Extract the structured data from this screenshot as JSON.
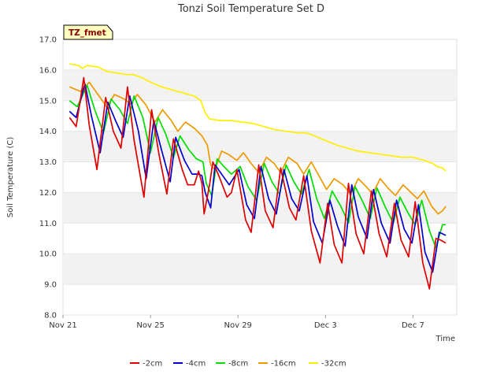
{
  "chart_data": {
    "type": "line",
    "title": "Tonzi Soil Temperature Set D",
    "badge": "TZ_fmet",
    "xlabel": "Time",
    "ylabel": "Soil Temperature (C)",
    "ylim": [
      8.0,
      17.0
    ],
    "yticks": [
      "8.0",
      "9.0",
      "10.0",
      "11.0",
      "12.0",
      "13.0",
      "14.0",
      "15.0",
      "16.0",
      "17.0"
    ],
    "xlim": [
      0,
      18
    ],
    "xticks": [
      {
        "x": 0,
        "label": "Nov 21"
      },
      {
        "x": 4,
        "label": "Nov 25"
      },
      {
        "x": 8,
        "label": "Nov 29"
      },
      {
        "x": 12,
        "label": "Dec 3"
      },
      {
        "x": 16,
        "label": "Dec 7"
      }
    ],
    "grid": "horizontal bands",
    "legend_position": "bottom",
    "x_unit": "days since Nov 21",
    "series": [
      {
        "name": "-2cm",
        "color": "#dd0000",
        "points": [
          [
            0.3,
            14.45
          ],
          [
            0.6,
            14.15
          ],
          [
            0.95,
            15.75
          ],
          [
            1.2,
            14.2
          ],
          [
            1.55,
            12.75
          ],
          [
            1.95,
            15.1
          ],
          [
            2.3,
            14.0
          ],
          [
            2.65,
            13.45
          ],
          [
            2.95,
            15.45
          ],
          [
            3.25,
            13.7
          ],
          [
            3.7,
            11.85
          ],
          [
            4.05,
            14.7
          ],
          [
            4.4,
            13.2
          ],
          [
            4.75,
            11.95
          ],
          [
            5.05,
            13.75
          ],
          [
            5.45,
            12.75
          ],
          [
            5.7,
            12.25
          ],
          [
            6.0,
            12.25
          ],
          [
            6.2,
            12.7
          ],
          [
            6.35,
            12.3
          ],
          [
            6.45,
            11.3
          ],
          [
            6.7,
            12.25
          ],
          [
            6.85,
            13.0
          ],
          [
            7.15,
            12.5
          ],
          [
            7.5,
            11.85
          ],
          [
            7.7,
            12.0
          ],
          [
            7.95,
            12.75
          ],
          [
            8.35,
            11.1
          ],
          [
            8.6,
            10.7
          ],
          [
            8.95,
            12.9
          ],
          [
            9.25,
            11.4
          ],
          [
            9.6,
            10.85
          ],
          [
            9.95,
            12.8
          ],
          [
            10.35,
            11.5
          ],
          [
            10.65,
            11.1
          ],
          [
            11.0,
            12.55
          ],
          [
            11.35,
            10.75
          ],
          [
            11.75,
            9.7
          ],
          [
            12.1,
            11.65
          ],
          [
            12.4,
            10.3
          ],
          [
            12.75,
            9.7
          ],
          [
            13.05,
            12.3
          ],
          [
            13.4,
            10.65
          ],
          [
            13.75,
            10.0
          ],
          [
            14.1,
            12.05
          ],
          [
            14.45,
            10.65
          ],
          [
            14.8,
            9.9
          ],
          [
            15.15,
            11.65
          ],
          [
            15.45,
            10.45
          ],
          [
            15.8,
            9.9
          ],
          [
            16.1,
            11.7
          ],
          [
            16.45,
            9.7
          ],
          [
            16.75,
            8.85
          ],
          [
            17.05,
            10.5
          ],
          [
            17.25,
            10.45
          ],
          [
            17.5,
            10.35
          ]
        ]
      },
      {
        "name": "-4cm",
        "color": "#0000cc",
        "points": [
          [
            0.3,
            14.65
          ],
          [
            0.6,
            14.45
          ],
          [
            1.0,
            15.55
          ],
          [
            1.3,
            14.5
          ],
          [
            1.7,
            13.3
          ],
          [
            2.05,
            14.95
          ],
          [
            2.4,
            14.35
          ],
          [
            2.75,
            13.8
          ],
          [
            3.05,
            15.15
          ],
          [
            3.45,
            14.0
          ],
          [
            3.8,
            12.45
          ],
          [
            4.15,
            14.35
          ],
          [
            4.5,
            13.4
          ],
          [
            4.9,
            12.35
          ],
          [
            5.15,
            13.8
          ],
          [
            5.55,
            13.05
          ],
          [
            5.9,
            12.6
          ],
          [
            6.2,
            12.6
          ],
          [
            6.35,
            12.55
          ],
          [
            6.5,
            12.0
          ],
          [
            6.75,
            11.5
          ],
          [
            6.95,
            12.9
          ],
          [
            7.25,
            12.6
          ],
          [
            7.6,
            12.25
          ],
          [
            8.05,
            12.75
          ],
          [
            8.4,
            11.6
          ],
          [
            8.75,
            11.15
          ],
          [
            9.05,
            12.85
          ],
          [
            9.4,
            11.8
          ],
          [
            9.75,
            11.3
          ],
          [
            10.1,
            12.75
          ],
          [
            10.45,
            11.8
          ],
          [
            10.8,
            11.4
          ],
          [
            11.15,
            12.55
          ],
          [
            11.45,
            11.05
          ],
          [
            11.85,
            10.35
          ],
          [
            12.2,
            11.75
          ],
          [
            12.55,
            10.9
          ],
          [
            12.9,
            10.25
          ],
          [
            13.2,
            12.25
          ],
          [
            13.5,
            11.2
          ],
          [
            13.9,
            10.5
          ],
          [
            14.2,
            12.1
          ],
          [
            14.55,
            11.0
          ],
          [
            14.95,
            10.35
          ],
          [
            15.25,
            11.75
          ],
          [
            15.6,
            10.8
          ],
          [
            15.95,
            10.35
          ],
          [
            16.25,
            11.6
          ],
          [
            16.55,
            10.05
          ],
          [
            16.9,
            9.4
          ],
          [
            17.2,
            10.7
          ],
          [
            17.5,
            10.6
          ]
        ]
      },
      {
        "name": "-8cm",
        "color": "#00dd00",
        "points": [
          [
            0.3,
            15.0
          ],
          [
            0.65,
            14.8
          ],
          [
            1.1,
            15.5
          ],
          [
            1.45,
            14.7
          ],
          [
            1.85,
            13.95
          ],
          [
            2.2,
            15.05
          ],
          [
            2.6,
            14.7
          ],
          [
            2.95,
            14.25
          ],
          [
            3.25,
            15.15
          ],
          [
            3.65,
            14.45
          ],
          [
            4.0,
            13.3
          ],
          [
            4.35,
            14.45
          ],
          [
            4.7,
            13.9
          ],
          [
            5.05,
            13.15
          ],
          [
            5.35,
            13.85
          ],
          [
            5.75,
            13.4
          ],
          [
            6.1,
            13.1
          ],
          [
            6.4,
            13.0
          ],
          [
            6.55,
            12.3
          ],
          [
            6.8,
            11.9
          ],
          [
            7.05,
            13.1
          ],
          [
            7.35,
            12.85
          ],
          [
            7.7,
            12.6
          ],
          [
            8.1,
            12.85
          ],
          [
            8.45,
            12.2
          ],
          [
            8.85,
            11.75
          ],
          [
            9.2,
            12.95
          ],
          [
            9.55,
            12.35
          ],
          [
            9.9,
            11.95
          ],
          [
            10.2,
            12.9
          ],
          [
            10.55,
            12.35
          ],
          [
            10.9,
            11.95
          ],
          [
            11.25,
            12.75
          ],
          [
            11.6,
            11.8
          ],
          [
            11.95,
            11.15
          ],
          [
            12.3,
            12.05
          ],
          [
            12.7,
            11.55
          ],
          [
            13.05,
            11.0
          ],
          [
            13.35,
            12.2
          ],
          [
            13.7,
            11.7
          ],
          [
            14.05,
            11.15
          ],
          [
            14.35,
            12.15
          ],
          [
            14.75,
            11.5
          ],
          [
            15.1,
            11.0
          ],
          [
            15.4,
            11.85
          ],
          [
            15.8,
            11.3
          ],
          [
            16.1,
            10.95
          ],
          [
            16.4,
            11.75
          ],
          [
            16.75,
            10.75
          ],
          [
            17.05,
            10.2
          ],
          [
            17.35,
            10.95
          ],
          [
            17.5,
            10.95
          ]
        ]
      },
      {
        "name": "-16cm",
        "color": "#ee9900",
        "points": [
          [
            0.3,
            15.45
          ],
          [
            0.8,
            15.3
          ],
          [
            1.2,
            15.6
          ],
          [
            1.6,
            15.2
          ],
          [
            2.0,
            14.8
          ],
          [
            2.35,
            15.2
          ],
          [
            2.8,
            15.05
          ],
          [
            3.1,
            14.9
          ],
          [
            3.4,
            15.2
          ],
          [
            3.8,
            14.85
          ],
          [
            4.2,
            14.3
          ],
          [
            4.55,
            14.7
          ],
          [
            4.95,
            14.35
          ],
          [
            5.25,
            14.0
          ],
          [
            5.6,
            14.3
          ],
          [
            6.0,
            14.1
          ],
          [
            6.35,
            13.85
          ],
          [
            6.6,
            13.55
          ],
          [
            6.75,
            12.9
          ],
          [
            6.95,
            12.75
          ],
          [
            7.25,
            13.35
          ],
          [
            7.55,
            13.25
          ],
          [
            7.95,
            13.05
          ],
          [
            8.25,
            13.3
          ],
          [
            8.6,
            12.95
          ],
          [
            8.95,
            12.65
          ],
          [
            9.3,
            13.15
          ],
          [
            9.65,
            12.95
          ],
          [
            9.95,
            12.65
          ],
          [
            10.3,
            13.15
          ],
          [
            10.7,
            12.95
          ],
          [
            11.0,
            12.6
          ],
          [
            11.35,
            13.0
          ],
          [
            11.7,
            12.55
          ],
          [
            12.05,
            12.1
          ],
          [
            12.4,
            12.45
          ],
          [
            12.8,
            12.25
          ],
          [
            13.15,
            11.95
          ],
          [
            13.5,
            12.45
          ],
          [
            13.85,
            12.2
          ],
          [
            14.15,
            11.95
          ],
          [
            14.5,
            12.45
          ],
          [
            14.85,
            12.15
          ],
          [
            15.2,
            11.9
          ],
          [
            15.55,
            12.25
          ],
          [
            15.9,
            12.0
          ],
          [
            16.2,
            11.8
          ],
          [
            16.5,
            12.05
          ],
          [
            16.85,
            11.55
          ],
          [
            17.15,
            11.3
          ],
          [
            17.35,
            11.4
          ],
          [
            17.5,
            11.55
          ]
        ]
      },
      {
        "name": "-32cm",
        "color": "#ffee00",
        "points": [
          [
            0.3,
            16.2
          ],
          [
            0.7,
            16.15
          ],
          [
            0.9,
            16.05
          ],
          [
            1.1,
            16.15
          ],
          [
            1.6,
            16.1
          ],
          [
            2.0,
            15.95
          ],
          [
            2.5,
            15.9
          ],
          [
            2.95,
            15.85
          ],
          [
            3.2,
            15.85
          ],
          [
            3.6,
            15.75
          ],
          [
            4.0,
            15.6
          ],
          [
            4.5,
            15.45
          ],
          [
            5.0,
            15.35
          ],
          [
            5.5,
            15.25
          ],
          [
            6.0,
            15.15
          ],
          [
            6.3,
            15.0
          ],
          [
            6.5,
            14.6
          ],
          [
            6.7,
            14.4
          ],
          [
            7.2,
            14.35
          ],
          [
            7.7,
            14.35
          ],
          [
            8.2,
            14.3
          ],
          [
            8.7,
            14.25
          ],
          [
            9.2,
            14.15
          ],
          [
            9.7,
            14.05
          ],
          [
            10.2,
            14.0
          ],
          [
            10.7,
            13.95
          ],
          [
            11.1,
            13.95
          ],
          [
            11.5,
            13.85
          ],
          [
            12.0,
            13.7
          ],
          [
            12.5,
            13.55
          ],
          [
            13.0,
            13.45
          ],
          [
            13.5,
            13.35
          ],
          [
            14.0,
            13.3
          ],
          [
            14.5,
            13.25
          ],
          [
            15.0,
            13.2
          ],
          [
            15.5,
            13.15
          ],
          [
            16.0,
            13.15
          ],
          [
            16.5,
            13.05
          ],
          [
            16.9,
            12.95
          ],
          [
            17.1,
            12.85
          ],
          [
            17.35,
            12.8
          ],
          [
            17.5,
            12.7
          ]
        ]
      }
    ]
  }
}
